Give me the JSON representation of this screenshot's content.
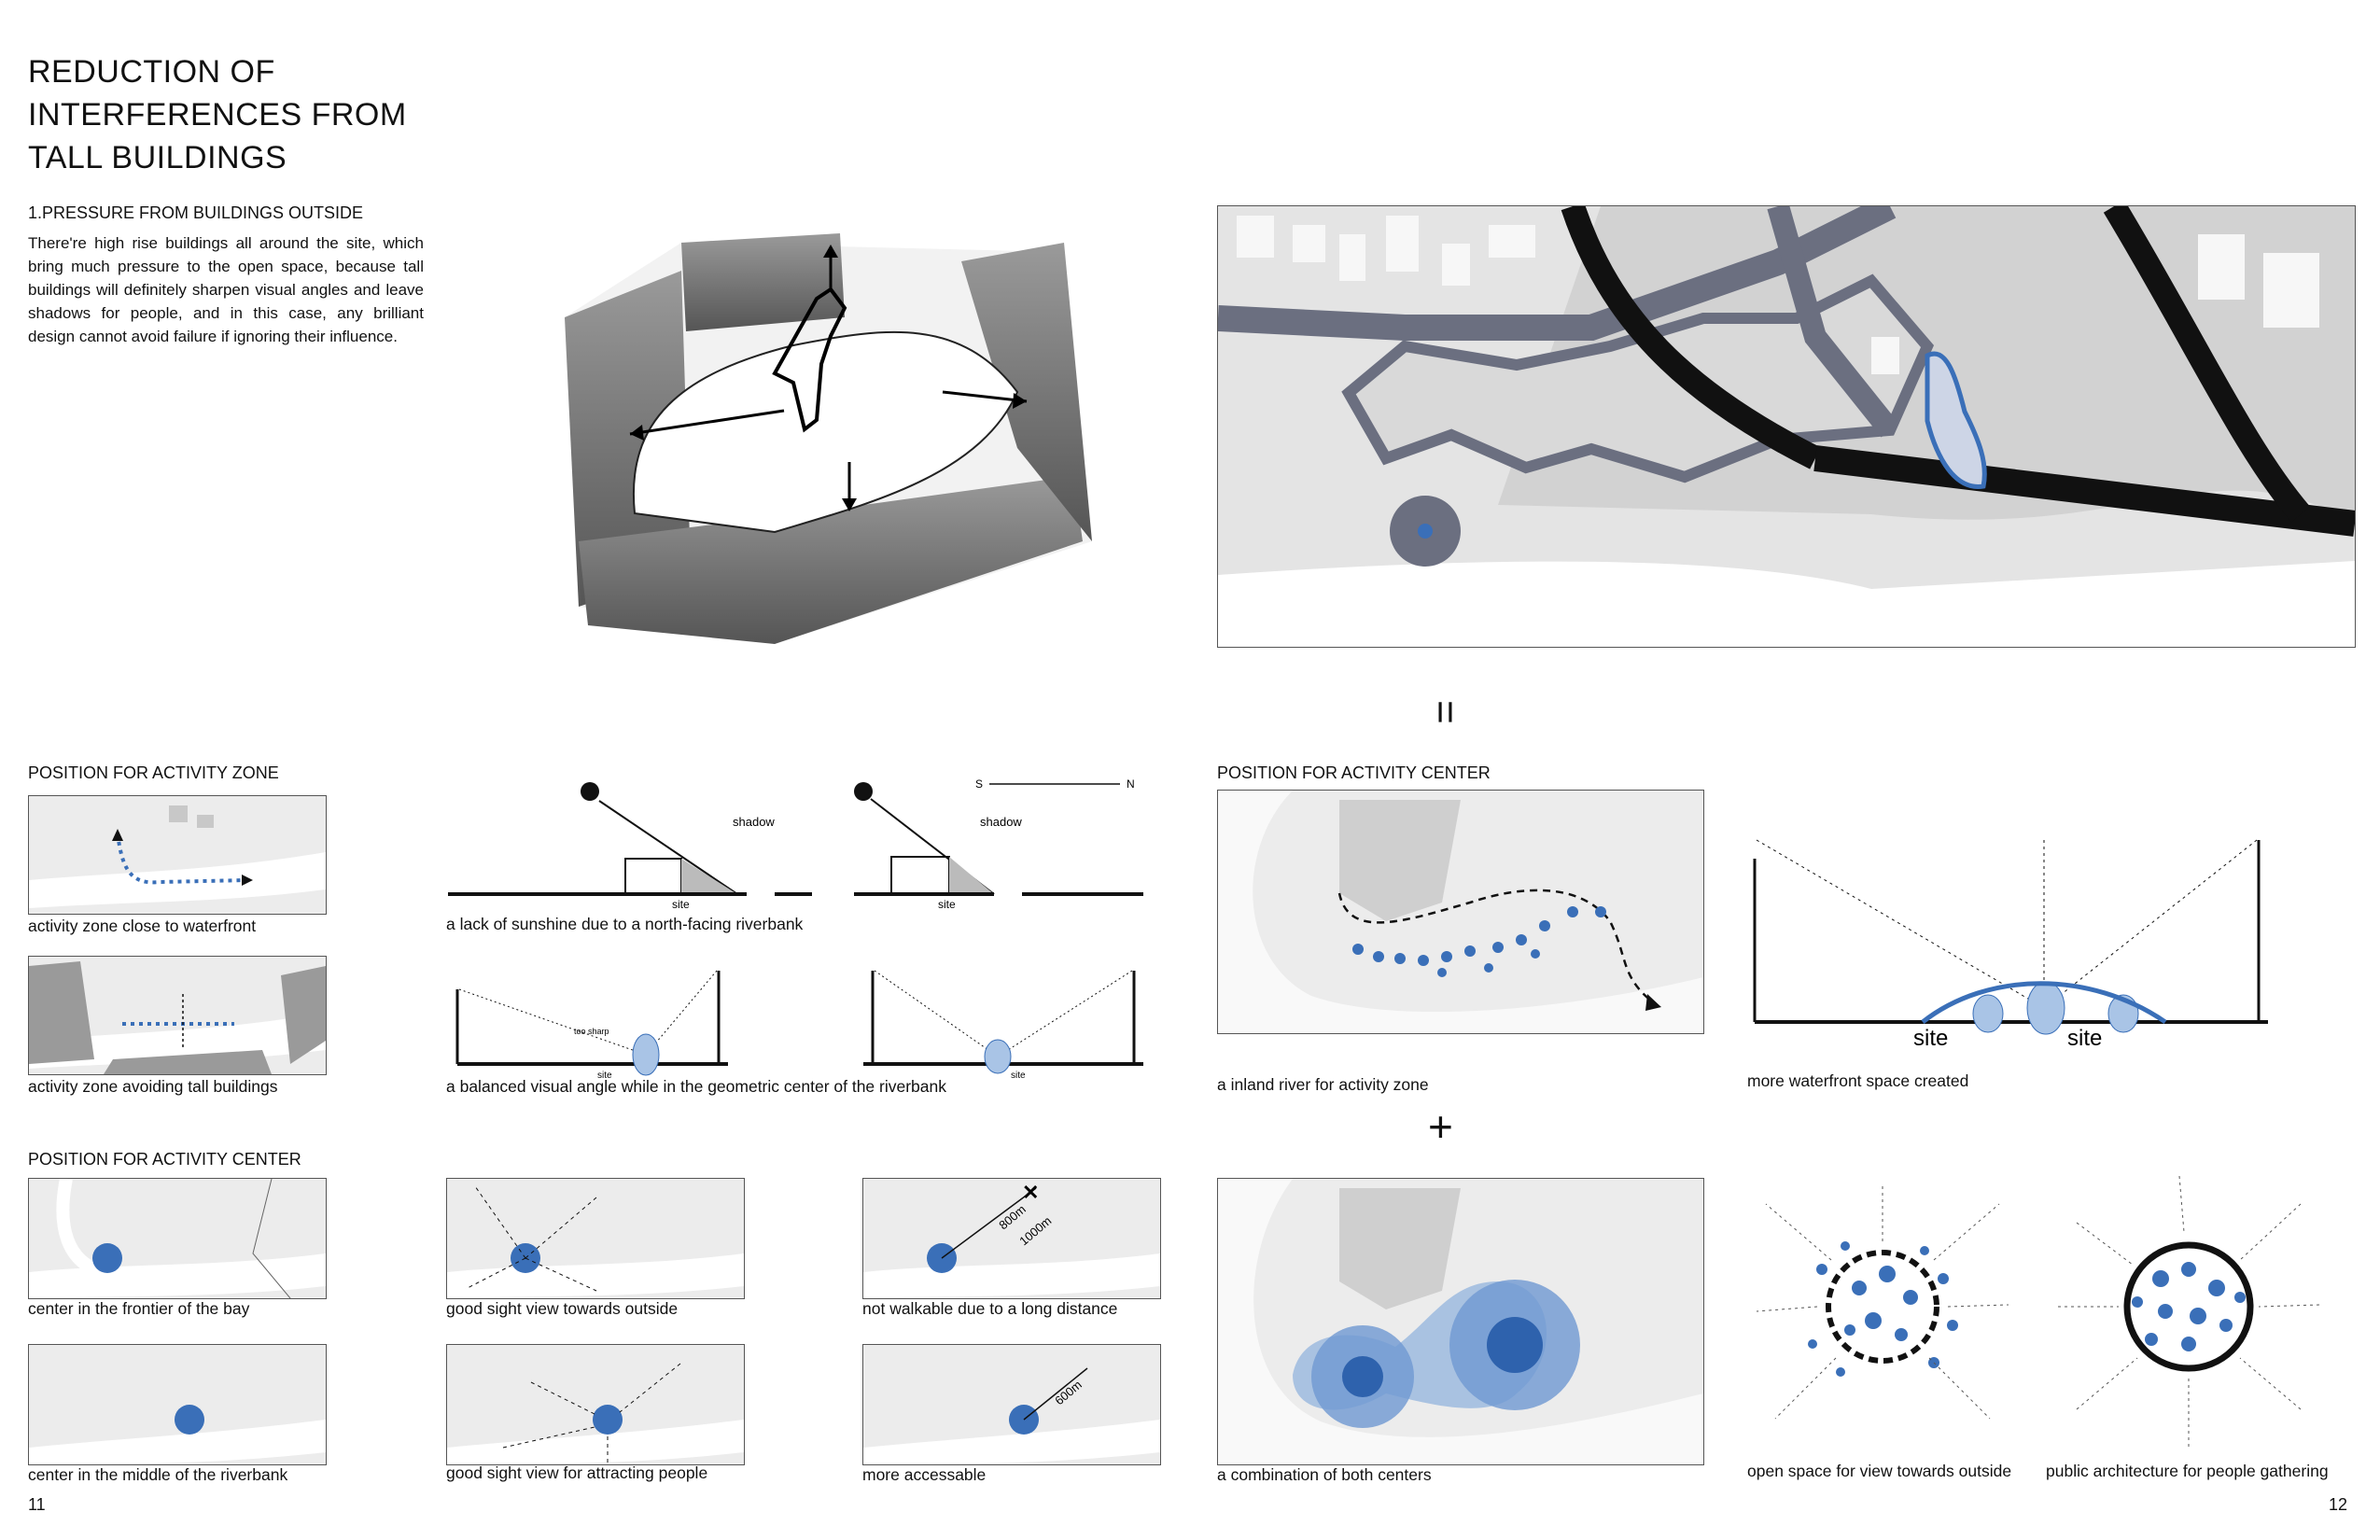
{
  "title": "REDUCTION OF INTERFERENCES FROM TALL BUILDINGS",
  "intro": {
    "heading": "1.PRESSURE FROM BUILDINGS OUTSIDE",
    "text": "There're high rise buildings all around the site, which bring much pressure to the open space, because tall buildings will definitely sharpen visual angles and leave shadows for people, and in this case, any brilliant design cannot avoid failure if ignoring their influence."
  },
  "equals_symbol": "=",
  "plus_symbol": "+",
  "sections": {
    "activity_zone": "POSITION FOR ACTIVITY ZONE",
    "activity_center_left": "POSITION FOR ACTIVITY CENTER",
    "activity_center_right": "POSITION FOR ACTIVITY CENTER"
  },
  "captions": {
    "zone_waterfront": "activity zone close to waterfront",
    "zone_avoid": "activity zone avoiding tall buildings",
    "lack_sunshine": "a lack of sunshine due to a north-facing riverbank",
    "balanced_angle": "a balanced visual angle while in the geometric center of the riverbank",
    "center_frontier": "center in the frontier of the bay",
    "sight_outside": "good sight view towards outside",
    "not_walkable": "not walkable due to a long distance",
    "center_middle": "center in the middle of the riverbank",
    "sight_attract": "good sight view for attracting people",
    "more_accessable": "more accessable",
    "inland_river": "a inland river for activity zone",
    "more_waterfront": "more waterfront space created",
    "combination": "a combination of both centers",
    "open_space": "open space for view towards outside",
    "public_arch": "public architecture for people gathering"
  },
  "diagram_labels": {
    "shadow": "shadow",
    "site": "site",
    "too_sharp": "too sharp",
    "south": "S",
    "north": "N",
    "d800": "800m",
    "d1000": "1000m",
    "d600": "600m"
  },
  "page_numbers": {
    "left": "11",
    "right": "12"
  },
  "colors": {
    "accent_blue": "#3a6fb8",
    "light_blue": "#a9c4e6",
    "road": "#666a7a",
    "ink": "#111111"
  }
}
